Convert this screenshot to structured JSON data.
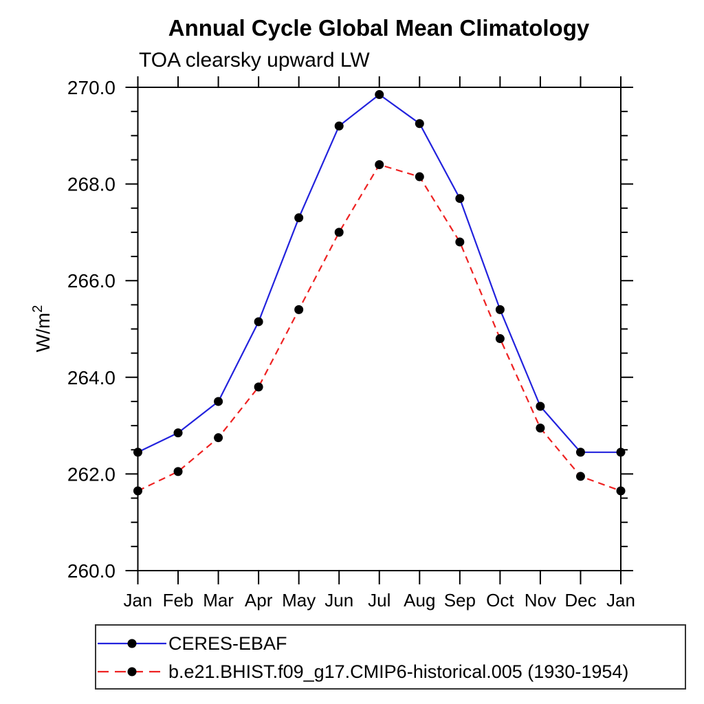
{
  "title": "Annual Cycle Global Mean Climatology",
  "subtitle": "TOA clearsky upward LW",
  "ylabel": "W/m²",
  "chart_data": {
    "type": "line",
    "x_categories": [
      "Jan",
      "Feb",
      "Mar",
      "Apr",
      "May",
      "Jun",
      "Jul",
      "Aug",
      "Sep",
      "Oct",
      "Nov",
      "Dec",
      "Jan"
    ],
    "xlabel": "",
    "ylabel": "W/m²",
    "ylim": [
      260.0,
      270.0
    ],
    "y_major_tick_step": 2.0,
    "y_minor_tick_step": 0.5,
    "y_major_tick_labels": [
      "260.0",
      "262.0",
      "264.0",
      "266.0",
      "268.0",
      "270.0"
    ],
    "grid": false,
    "legend_position": "bottom-left",
    "frame_color": "#000000",
    "marker_color": "#000000",
    "series": [
      {
        "name": "CERES-EBAF",
        "color": "#2222dd",
        "line_style": "solid",
        "marker": "circle",
        "values": [
          262.45,
          262.85,
          263.5,
          265.15,
          267.3,
          269.2,
          269.85,
          269.25,
          267.7,
          265.4,
          263.4,
          262.45,
          262.45
        ]
      },
      {
        "name": "b.e21.BHIST.f09_g17.CMIP6-historical.005 (1930-1954)",
        "color": "#ee2222",
        "line_style": "dashed",
        "marker": "circle",
        "values": [
          261.65,
          262.05,
          262.75,
          263.8,
          265.4,
          267.0,
          268.4,
          268.15,
          266.8,
          264.8,
          262.95,
          261.95,
          261.65
        ]
      }
    ]
  }
}
